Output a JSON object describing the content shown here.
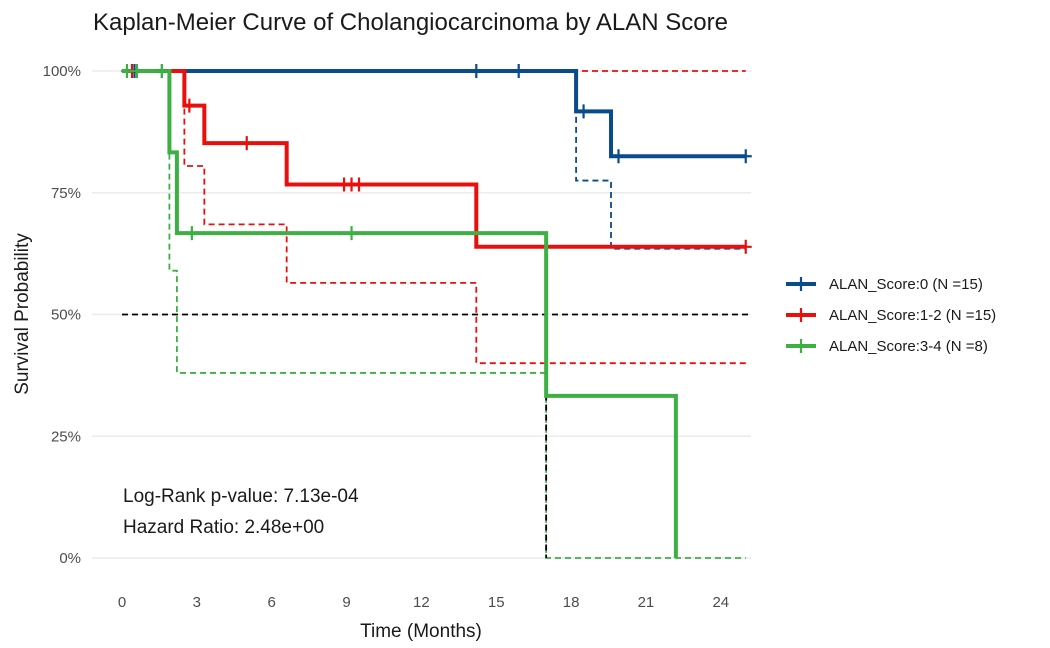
{
  "chart_data": {
    "type": "line",
    "subtype": "kaplan-meier",
    "title": "Kaplan-Meier Curve of Cholangiocarcinoma by ALAN Score",
    "xlabel": "Time (Months)",
    "ylabel": "Survival Probability",
    "xlim": [
      0,
      25
    ],
    "ylim": [
      0,
      1
    ],
    "x_ticks": [
      0,
      3,
      6,
      9,
      12,
      15,
      18,
      21,
      24
    ],
    "y_ticks": [
      0,
      0.25,
      0.5,
      0.75,
      1.0
    ],
    "y_tick_labels": [
      "0%",
      "25%",
      "50%",
      "75%",
      "100%"
    ],
    "grid": true,
    "legend_position": "right",
    "median_line": 0.5,
    "median_drop_x": 17.0,
    "series": [
      {
        "name": "ALAN_Score:0 (N =15)",
        "color": "#0a4b8c",
        "steps": [
          [
            0,
            1.0
          ],
          [
            18.2,
            0.917
          ],
          [
            19.6,
            0.825
          ]
        ],
        "x_end": 25,
        "censors": [
          [
            0.5,
            1.0
          ],
          [
            1.6,
            1.0
          ],
          [
            14.2,
            1.0
          ],
          [
            15.9,
            1.0
          ],
          [
            18.5,
            0.917
          ],
          [
            19.9,
            0.825
          ],
          [
            25,
            0.825
          ]
        ],
        "ci_lower": [
          [
            0,
            1.0
          ],
          [
            18.2,
            0.775
          ],
          [
            19.6,
            0.635
          ]
        ]
      },
      {
        "name": "ALAN_Score:1-2 (N =15)",
        "color": "#e8100c",
        "steps": [
          [
            0,
            1.0
          ],
          [
            2.5,
            0.929
          ],
          [
            3.3,
            0.852
          ],
          [
            6.6,
            0.767
          ],
          [
            14.2,
            0.639
          ]
        ],
        "x_end": 25,
        "censors": [
          [
            0.4,
            1.0
          ],
          [
            2.7,
            0.929
          ],
          [
            5.0,
            0.852
          ],
          [
            8.9,
            0.767
          ],
          [
            9.2,
            0.767
          ],
          [
            9.5,
            0.767
          ],
          [
            25,
            0.639
          ]
        ],
        "ci_lower": [
          [
            0,
            1.0
          ],
          [
            2.5,
            0.805
          ],
          [
            3.3,
            0.685
          ],
          [
            6.6,
            0.565
          ],
          [
            14.2,
            0.4
          ]
        ],
        "ci_upper": [
          [
            0,
            1.0
          ],
          [
            25,
            1.0
          ]
        ]
      },
      {
        "name": "ALAN_Score:3-4 (N =8)",
        "color": "#3cb043",
        "steps": [
          [
            0,
            1.0
          ],
          [
            1.9,
            0.833
          ],
          [
            2.2,
            0.667
          ],
          [
            17.0,
            0.333
          ],
          [
            22.2,
            0.0
          ]
        ],
        "x_end": 22.2,
        "censors": [
          [
            0.2,
            1.0
          ],
          [
            0.6,
            1.0
          ],
          [
            1.6,
            1.0
          ],
          [
            2.8,
            0.667
          ],
          [
            9.2,
            0.667
          ]
        ],
        "ci_lower": [
          [
            0,
            1.0
          ],
          [
            1.9,
            0.59
          ],
          [
            2.2,
            0.38
          ],
          [
            17.0,
            0.0
          ]
        ]
      }
    ],
    "annotations": [
      "Log-Rank p-value: 7.13e-04",
      "Hazard Ratio: 2.48e+00"
    ]
  }
}
